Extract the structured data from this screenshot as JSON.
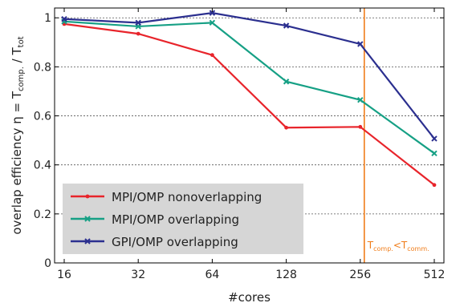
{
  "chart_data": {
    "type": "line",
    "x": [
      16,
      32,
      64,
      128,
      256,
      512
    ],
    "xlabel": "#cores",
    "x_scale": "log2",
    "x_tick_labels": [
      "16",
      "32",
      "64",
      "128",
      "256",
      "512"
    ],
    "ylabel_parts": {
      "prefix": "overlap efficiency η = T",
      "sub1": "comp.",
      "mid": " / T",
      "sub2": "tot"
    },
    "ylim": [
      0,
      1.04
    ],
    "y_tick_labels": [
      "0",
      "0.2",
      "0.4",
      "0.6",
      "0.8",
      "1"
    ],
    "y_ticks": [
      0,
      0.2,
      0.4,
      0.6,
      0.8,
      1
    ],
    "grid": "horizontal-dotted",
    "legend_position": "bottom-left",
    "legend_bg": "#d6d6d6",
    "series": [
      {
        "name": "MPI/OMP nonoverlapping",
        "color": "#e8242b",
        "marker": "dot",
        "values": [
          0.975,
          0.935,
          0.848,
          0.552,
          0.555,
          0.318
        ]
      },
      {
        "name": "MPI/OMP overlapping",
        "color": "#16a085",
        "marker": "x",
        "values": [
          0.985,
          0.965,
          0.98,
          0.74,
          0.665,
          0.447
        ]
      },
      {
        "name": "GPI/OMP overlapping",
        "color": "#2b2f8f",
        "marker": "x",
        "values": [
          0.995,
          0.98,
          1.02,
          0.968,
          0.893,
          0.507
        ]
      }
    ],
    "annotation": {
      "x": 256,
      "color": "#f07d1a",
      "label_parts": {
        "a": "T",
        "sub1": "comp.",
        "mid": "<T",
        "sub2": "comm."
      }
    }
  }
}
